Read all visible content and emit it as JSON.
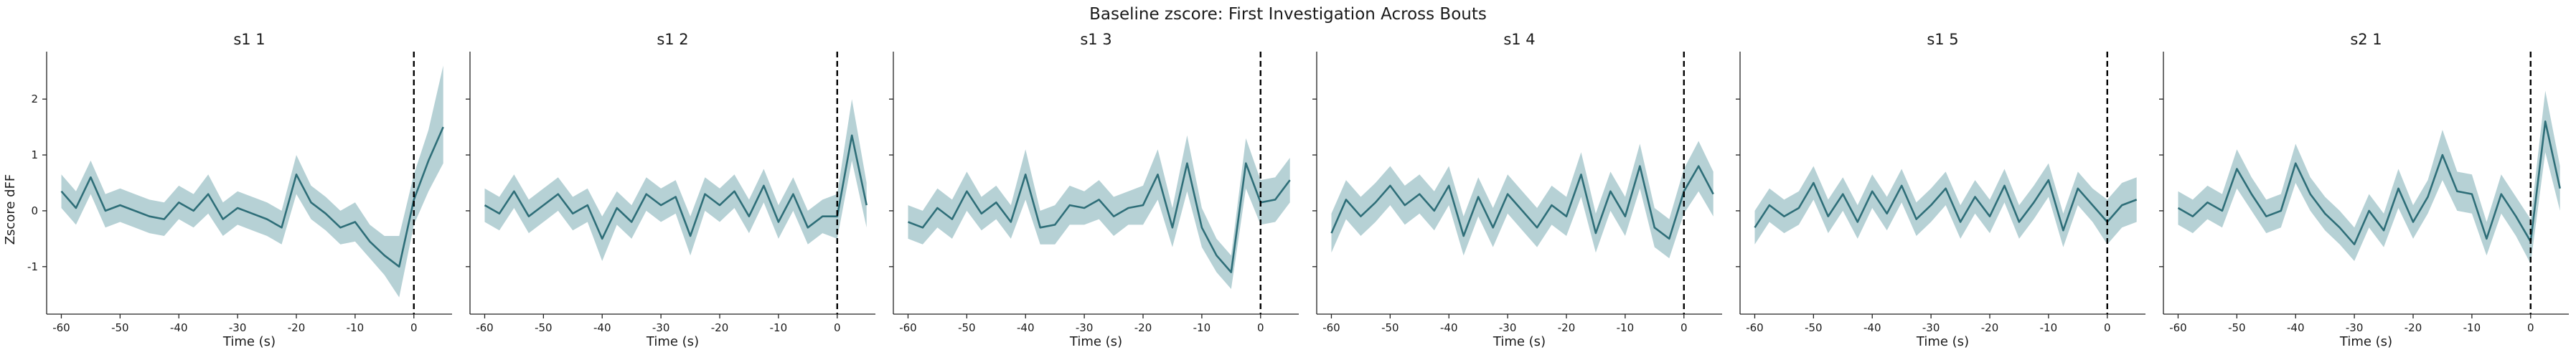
{
  "figure": {
    "title": "Baseline zscore: First Investigation Across Bouts",
    "ylabel": "Zscore dFF",
    "colors": {
      "line": "#2e6e78",
      "band": "#8fb8bf",
      "event": "#000000",
      "axis": "#222222"
    }
  },
  "chart_data": [
    {
      "type": "line",
      "title": "s1 1",
      "xlabel": "Time (s)",
      "ylabel": "Zscore dFF",
      "xlim": [
        -62.5,
        6.5
      ],
      "ylim": [
        -1.85,
        2.85
      ],
      "xticks": [
        -60,
        -50,
        -40,
        -30,
        -20,
        -10,
        0
      ],
      "yticks": [
        -1,
        0,
        1,
        2
      ],
      "event_x": 0,
      "x": [
        -60,
        -57.5,
        -55,
        -52.5,
        -50,
        -47.5,
        -45,
        -42.5,
        -40,
        -37.5,
        -35,
        -32.5,
        -30,
        -27.5,
        -25,
        -22.5,
        -20,
        -17.5,
        -15,
        -12.5,
        -10,
        -7.5,
        -5,
        -2.5,
        0,
        2.5,
        5
      ],
      "mean": [
        0.35,
        0.05,
        0.6,
        0.0,
        0.1,
        0.0,
        -0.1,
        -0.15,
        0.15,
        0.0,
        0.3,
        -0.15,
        0.05,
        -0.05,
        -0.15,
        -0.3,
        0.65,
        0.15,
        -0.05,
        -0.3,
        -0.2,
        -0.55,
        -0.8,
        -1.0,
        0.2,
        0.9,
        1.5
      ],
      "lower": [
        0.05,
        -0.25,
        0.3,
        -0.3,
        -0.2,
        -0.3,
        -0.4,
        -0.45,
        -0.15,
        -0.3,
        -0.05,
        -0.45,
        -0.25,
        -0.35,
        -0.45,
        -0.6,
        0.3,
        -0.15,
        -0.35,
        -0.6,
        -0.55,
        -0.85,
        -1.15,
        -1.55,
        -0.25,
        0.35,
        0.85
      ],
      "upper": [
        0.65,
        0.35,
        0.9,
        0.3,
        0.4,
        0.3,
        0.2,
        0.15,
        0.45,
        0.3,
        0.65,
        0.15,
        0.35,
        0.25,
        0.15,
        0.0,
        1.0,
        0.45,
        0.25,
        0.0,
        0.15,
        -0.25,
        -0.45,
        -0.45,
        0.65,
        1.45,
        2.6
      ]
    },
    {
      "type": "line",
      "title": "s1 2",
      "xlabel": "Time (s)",
      "ylabel": "",
      "xlim": [
        -62.5,
        6.5
      ],
      "ylim": [
        -1.85,
        2.85
      ],
      "xticks": [
        -60,
        -50,
        -40,
        -30,
        -20,
        -10,
        0
      ],
      "yticks": [
        -1,
        0,
        1,
        2
      ],
      "event_x": 0,
      "x": [
        -60,
        -57.5,
        -55,
        -52.5,
        -50,
        -47.5,
        -45,
        -42.5,
        -40,
        -37.5,
        -35,
        -32.5,
        -30,
        -27.5,
        -25,
        -22.5,
        -20,
        -17.5,
        -15,
        -12.5,
        -10,
        -7.5,
        -5,
        -2.5,
        0,
        2.5,
        5
      ],
      "mean": [
        0.1,
        -0.05,
        0.35,
        -0.1,
        0.1,
        0.3,
        -0.05,
        0.1,
        -0.5,
        0.05,
        -0.2,
        0.3,
        0.1,
        0.25,
        -0.45,
        0.3,
        0.1,
        0.35,
        -0.1,
        0.45,
        -0.2,
        0.3,
        -0.3,
        -0.1,
        -0.1,
        1.35,
        0.1
      ],
      "lower": [
        -0.2,
        -0.35,
        0.05,
        -0.4,
        -0.2,
        0.0,
        -0.35,
        -0.2,
        -0.9,
        -0.25,
        -0.5,
        0.0,
        -0.2,
        -0.05,
        -0.8,
        0.0,
        -0.2,
        0.05,
        -0.4,
        0.15,
        -0.5,
        0.0,
        -0.6,
        -0.4,
        -0.5,
        0.9,
        -0.3
      ],
      "upper": [
        0.4,
        0.25,
        0.65,
        0.2,
        0.4,
        0.6,
        0.25,
        0.4,
        -0.1,
        0.35,
        0.1,
        0.6,
        0.4,
        0.55,
        -0.1,
        0.6,
        0.4,
        0.65,
        0.2,
        0.75,
        0.1,
        0.6,
        0.0,
        0.2,
        0.3,
        2.0,
        0.5
      ]
    },
    {
      "type": "line",
      "title": "s1 3",
      "xlabel": "Time (s)",
      "ylabel": "",
      "xlim": [
        -62.5,
        6.5
      ],
      "ylim": [
        -1.85,
        2.85
      ],
      "xticks": [
        -60,
        -50,
        -40,
        -30,
        -20,
        -10,
        0
      ],
      "yticks": [
        -1,
        0,
        1,
        2
      ],
      "event_x": 0,
      "x": [
        -60,
        -57.5,
        -55,
        -52.5,
        -50,
        -47.5,
        -45,
        -42.5,
        -40,
        -37.5,
        -35,
        -32.5,
        -30,
        -27.5,
        -25,
        -22.5,
        -20,
        -17.5,
        -15,
        -12.5,
        -10,
        -7.5,
        -5,
        -2.5,
        0,
        2.5,
        5
      ],
      "mean": [
        -0.2,
        -0.3,
        0.05,
        -0.15,
        0.35,
        -0.05,
        0.15,
        -0.2,
        0.65,
        -0.3,
        -0.25,
        0.1,
        0.05,
        0.2,
        -0.1,
        0.05,
        0.1,
        0.65,
        -0.3,
        0.85,
        -0.3,
        -0.8,
        -1.1,
        0.85,
        0.15,
        0.2,
        0.55
      ],
      "lower": [
        -0.5,
        -0.6,
        -0.3,
        -0.5,
        0.0,
        -0.35,
        -0.15,
        -0.5,
        0.2,
        -0.6,
        -0.6,
        -0.25,
        -0.25,
        -0.15,
        -0.45,
        -0.25,
        -0.25,
        0.2,
        -0.65,
        0.35,
        -0.65,
        -1.1,
        -1.4,
        0.4,
        -0.25,
        -0.2,
        0.15
      ],
      "upper": [
        0.1,
        0.0,
        0.4,
        0.2,
        0.7,
        0.25,
        0.45,
        0.1,
        1.1,
        0.0,
        0.1,
        0.45,
        0.35,
        0.55,
        0.25,
        0.35,
        0.45,
        1.1,
        0.05,
        1.35,
        0.05,
        -0.5,
        -0.8,
        1.3,
        0.55,
        0.6,
        0.95
      ]
    },
    {
      "type": "line",
      "title": "s1 4",
      "xlabel": "Time (s)",
      "ylabel": "",
      "xlim": [
        -62.5,
        6.5
      ],
      "ylim": [
        -1.85,
        2.85
      ],
      "xticks": [
        -60,
        -50,
        -40,
        -30,
        -20,
        -10,
        0
      ],
      "yticks": [
        -1,
        0,
        1,
        2
      ],
      "event_x": 0,
      "x": [
        -60,
        -57.5,
        -55,
        -52.5,
        -50,
        -47.5,
        -45,
        -42.5,
        -40,
        -37.5,
        -35,
        -32.5,
        -30,
        -27.5,
        -25,
        -22.5,
        -20,
        -17.5,
        -15,
        -12.5,
        -10,
        -7.5,
        -5,
        -2.5,
        0,
        2.5,
        5
      ],
      "mean": [
        -0.4,
        0.2,
        -0.1,
        0.15,
        0.45,
        0.1,
        0.3,
        0.0,
        0.45,
        -0.45,
        0.25,
        -0.3,
        0.3,
        0.0,
        -0.3,
        0.1,
        -0.1,
        0.65,
        -0.4,
        0.35,
        -0.1,
        0.8,
        -0.3,
        -0.5,
        0.35,
        0.8,
        0.3
      ],
      "lower": [
        -0.75,
        -0.15,
        -0.45,
        -0.2,
        0.1,
        -0.25,
        -0.05,
        -0.35,
        0.1,
        -0.8,
        -0.1,
        -0.65,
        -0.05,
        -0.35,
        -0.65,
        -0.25,
        -0.45,
        0.25,
        -0.75,
        0.0,
        -0.45,
        0.4,
        -0.65,
        -0.85,
        -0.05,
        0.35,
        -0.1
      ],
      "upper": [
        -0.05,
        0.55,
        0.25,
        0.5,
        0.8,
        0.45,
        0.65,
        0.35,
        0.8,
        -0.1,
        0.6,
        0.05,
        0.65,
        0.35,
        0.05,
        0.45,
        0.25,
        1.05,
        -0.05,
        0.7,
        0.25,
        1.2,
        0.05,
        -0.15,
        0.75,
        1.25,
        0.7
      ]
    },
    {
      "type": "line",
      "title": "s1 5",
      "xlabel": "Time (s)",
      "ylabel": "",
      "xlim": [
        -62.5,
        6.5
      ],
      "ylim": [
        -1.85,
        2.85
      ],
      "xticks": [
        -60,
        -50,
        -40,
        -30,
        -20,
        -10,
        0
      ],
      "yticks": [
        -1,
        0,
        1,
        2
      ],
      "event_x": 0,
      "x": [
        -60,
        -57.5,
        -55,
        -52.5,
        -50,
        -47.5,
        -45,
        -42.5,
        -40,
        -37.5,
        -35,
        -32.5,
        -30,
        -27.5,
        -25,
        -22.5,
        -20,
        -17.5,
        -15,
        -12.5,
        -10,
        -7.5,
        -5,
        -2.5,
        0,
        2.5,
        5
      ],
      "mean": [
        -0.3,
        0.1,
        -0.1,
        0.05,
        0.5,
        -0.1,
        0.3,
        -0.2,
        0.35,
        -0.05,
        0.45,
        -0.15,
        0.1,
        0.4,
        -0.2,
        0.25,
        -0.1,
        0.45,
        -0.2,
        0.15,
        0.55,
        -0.35,
        0.4,
        0.1,
        -0.2,
        0.1,
        0.2
      ],
      "lower": [
        -0.6,
        -0.2,
        -0.4,
        -0.25,
        0.2,
        -0.4,
        0.0,
        -0.5,
        0.05,
        -0.35,
        0.15,
        -0.45,
        -0.2,
        0.1,
        -0.5,
        -0.05,
        -0.4,
        0.15,
        -0.5,
        -0.15,
        0.25,
        -0.65,
        0.1,
        -0.2,
        -0.6,
        -0.3,
        -0.2
      ],
      "upper": [
        0.0,
        0.4,
        0.2,
        0.35,
        0.8,
        0.2,
        0.6,
        0.1,
        0.65,
        0.25,
        0.75,
        0.15,
        0.4,
        0.7,
        0.1,
        0.55,
        0.2,
        0.75,
        0.1,
        0.45,
        0.85,
        -0.05,
        0.7,
        0.4,
        0.2,
        0.5,
        0.6
      ]
    },
    {
      "type": "line",
      "title": "s2 1",
      "xlabel": "Time (s)",
      "ylabel": "",
      "xlim": [
        -62.5,
        6.5
      ],
      "ylim": [
        -1.85,
        2.85
      ],
      "xticks": [
        -60,
        -50,
        -40,
        -30,
        -20,
        -10,
        0
      ],
      "yticks": [
        -1,
        0,
        1,
        2
      ],
      "event_x": 0,
      "x": [
        -60,
        -57.5,
        -55,
        -52.5,
        -50,
        -47.5,
        -45,
        -42.5,
        -40,
        -37.5,
        -35,
        -32.5,
        -30,
        -27.5,
        -25,
        -22.5,
        -20,
        -17.5,
        -15,
        -12.5,
        -10,
        -7.5,
        -5,
        -2.5,
        0,
        2.5,
        5
      ],
      "mean": [
        0.05,
        -0.1,
        0.15,
        0.0,
        0.75,
        0.3,
        -0.1,
        0.0,
        0.85,
        0.3,
        -0.05,
        -0.3,
        -0.6,
        0.0,
        -0.35,
        0.4,
        -0.2,
        0.25,
        1.0,
        0.35,
        0.3,
        -0.5,
        0.3,
        -0.1,
        -0.55,
        1.6,
        0.4
      ],
      "lower": [
        -0.25,
        -0.4,
        -0.15,
        -0.3,
        0.4,
        0.0,
        -0.4,
        -0.3,
        0.5,
        0.0,
        -0.35,
        -0.6,
        -0.9,
        -0.3,
        -0.65,
        0.05,
        -0.5,
        -0.05,
        0.55,
        0.0,
        -0.05,
        -0.8,
        -0.05,
        -0.45,
        -0.95,
        1.05,
        0.0
      ],
      "upper": [
        0.35,
        0.2,
        0.45,
        0.3,
        1.1,
        0.6,
        0.2,
        0.3,
        1.2,
        0.6,
        0.25,
        0.0,
        -0.3,
        0.3,
        -0.05,
        0.75,
        0.1,
        0.55,
        1.45,
        0.7,
        0.65,
        -0.2,
        0.65,
        0.25,
        -0.15,
        2.15,
        0.8
      ]
    }
  ]
}
